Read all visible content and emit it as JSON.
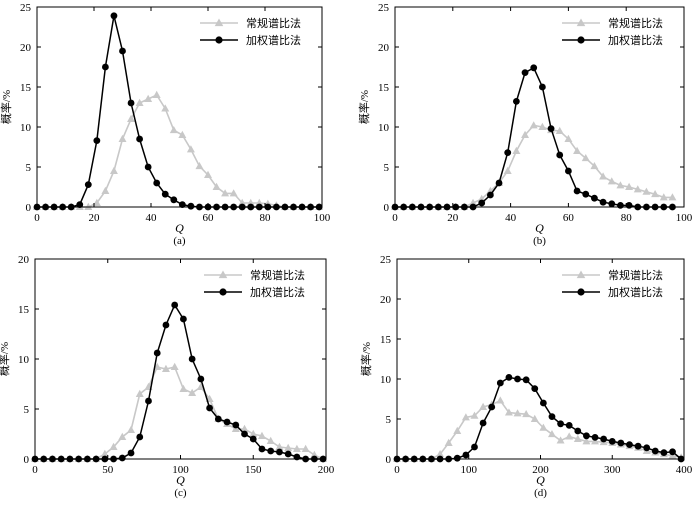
{
  "chart_data": [
    {
      "type": "line",
      "caption": "(a)",
      "xlabel": "Q",
      "ylabel": "概率/%",
      "xlim": [
        0,
        100
      ],
      "ylim": [
        0,
        25
      ],
      "xticks": [
        0,
        20,
        40,
        60,
        80,
        100
      ],
      "yticks": [
        0,
        5,
        10,
        15,
        20,
        25
      ],
      "legend_position": "top-right",
      "series": [
        {
          "name": "常规谱比法",
          "color": "#c8c8c8",
          "marker": "triangle",
          "x": [
            0,
            3,
            6,
            9,
            12,
            15,
            18,
            21,
            24,
            27,
            30,
            33,
            36,
            39,
            42,
            45,
            48,
            51,
            54,
            57,
            60,
            63,
            66,
            69,
            72,
            75,
            78,
            81,
            84,
            87,
            90,
            93,
            96,
            99
          ],
          "y": [
            0,
            0,
            0,
            0,
            0,
            0,
            0,
            0.5,
            2,
            4.5,
            8.5,
            11,
            13,
            13.5,
            14,
            12.3,
            9.6,
            9,
            7.2,
            5.1,
            4,
            2.5,
            1.7,
            1.7,
            0.5,
            0.5,
            0.5,
            0.4,
            0.2,
            0,
            0,
            0,
            0,
            0
          ]
        },
        {
          "name": "加权谱比法",
          "color": "#000000",
          "marker": "circle",
          "x": [
            0,
            3,
            6,
            9,
            12,
            15,
            18,
            21,
            24,
            27,
            30,
            33,
            36,
            39,
            42,
            45,
            48,
            51,
            54,
            57,
            60,
            63,
            66,
            69,
            72,
            75,
            78,
            81,
            84,
            87,
            90,
            93,
            96,
            99
          ],
          "y": [
            0,
            0,
            0,
            0,
            0,
            0.3,
            2.8,
            8.3,
            17.5,
            23.9,
            19.5,
            13,
            8.5,
            5,
            3,
            1.6,
            0.9,
            0.3,
            0.1,
            0,
            0,
            0,
            0,
            0,
            0,
            0,
            0,
            0,
            0,
            0,
            0,
            0,
            0,
            0
          ]
        }
      ]
    },
    {
      "type": "line",
      "caption": "(b)",
      "xlabel": "Q",
      "ylabel": "概率/%",
      "xlim": [
        0,
        100
      ],
      "ylim": [
        0,
        25
      ],
      "xticks": [
        0,
        20,
        40,
        60,
        80,
        100
      ],
      "yticks": [
        0,
        5,
        10,
        15,
        20,
        25
      ],
      "legend_position": "top-right",
      "series": [
        {
          "name": "常规谱比法",
          "color": "#c8c8c8",
          "marker": "triangle",
          "x": [
            0,
            3,
            6,
            9,
            12,
            15,
            18,
            21,
            24,
            27,
            30,
            33,
            36,
            39,
            42,
            45,
            48,
            51,
            54,
            57,
            60,
            63,
            66,
            69,
            72,
            75,
            78,
            81,
            84,
            87,
            90,
            93,
            96
          ],
          "y": [
            0,
            0,
            0,
            0,
            0,
            0,
            0,
            0,
            0,
            0.5,
            1,
            2,
            3,
            4.5,
            7,
            9,
            10.2,
            10,
            9.6,
            9.5,
            8.5,
            7,
            6.1,
            5.1,
            3.8,
            3.2,
            2.7,
            2.5,
            2.2,
            1.9,
            1.6,
            1.2,
            1.2
          ]
        },
        {
          "name": "加权谱比法",
          "color": "#000000",
          "marker": "circle",
          "x": [
            0,
            3,
            6,
            9,
            12,
            15,
            18,
            21,
            24,
            27,
            30,
            33,
            36,
            39,
            42,
            45,
            48,
            51,
            54,
            57,
            60,
            63,
            66,
            69,
            72,
            75,
            78,
            81,
            84,
            87,
            90,
            93,
            96
          ],
          "y": [
            0,
            0,
            0,
            0,
            0,
            0,
            0,
            0,
            0,
            0,
            0.5,
            1.5,
            3,
            6.8,
            13.2,
            16.8,
            17.4,
            15,
            9.8,
            6.5,
            4.5,
            2,
            1.6,
            1.1,
            0.6,
            0.4,
            0.2,
            0.2,
            0,
            0,
            0,
            0,
            0
          ]
        }
      ]
    },
    {
      "type": "line",
      "caption": "(c)",
      "xlabel": "Q",
      "ylabel": "概率/%",
      "xlim": [
        0,
        200
      ],
      "ylim": [
        0,
        20
      ],
      "xticks": [
        0,
        50,
        100,
        150,
        200
      ],
      "yticks": [
        0,
        5,
        10,
        15,
        20
      ],
      "legend_position": "top-right",
      "series": [
        {
          "name": "常规谱比法",
          "color": "#c8c8c8",
          "marker": "triangle",
          "x": [
            0,
            6,
            12,
            18,
            24,
            30,
            36,
            42,
            48,
            54,
            60,
            66,
            72,
            78,
            84,
            90,
            96,
            102,
            108,
            114,
            120,
            126,
            132,
            138,
            144,
            150,
            156,
            162,
            168,
            174,
            180,
            186,
            192,
            198
          ],
          "y": [
            0,
            0,
            0,
            0,
            0,
            0,
            0,
            0,
            0.5,
            1.2,
            2.2,
            2.9,
            6.5,
            7.2,
            9.2,
            9,
            9.2,
            7,
            6.6,
            7.2,
            6,
            4,
            3.5,
            3,
            3,
            2.5,
            2.3,
            1.8,
            1.2,
            1.1,
            1,
            1,
            0.4,
            0
          ]
        },
        {
          "name": "加权谱比法",
          "color": "#000000",
          "marker": "circle",
          "x": [
            0,
            6,
            12,
            18,
            24,
            30,
            36,
            42,
            48,
            54,
            60,
            66,
            72,
            78,
            84,
            90,
            96,
            102,
            108,
            114,
            120,
            126,
            132,
            138,
            144,
            150,
            156,
            162,
            168,
            174,
            180,
            186,
            192,
            198
          ],
          "y": [
            0,
            0,
            0,
            0,
            0,
            0,
            0,
            0,
            0,
            0,
            0.1,
            0.6,
            2.2,
            5.8,
            10.6,
            13.4,
            15.4,
            14,
            10,
            8,
            5.1,
            4,
            3.7,
            3.4,
            2.5,
            2,
            1,
            0.8,
            0.7,
            0.5,
            0.2,
            0,
            0,
            0
          ]
        }
      ]
    },
    {
      "type": "line",
      "caption": "(d)",
      "xlabel": "Q",
      "ylabel": "概率/%",
      "xlim": [
        0,
        400
      ],
      "ylim": [
        0,
        25
      ],
      "xticks": [
        0,
        100,
        200,
        300,
        400
      ],
      "yticks": [
        0,
        5,
        10,
        15,
        20,
        25
      ],
      "legend_position": "top-right",
      "series": [
        {
          "name": "常规谱比法",
          "color": "#c8c8c8",
          "marker": "triangle",
          "x": [
            0,
            12,
            24,
            36,
            48,
            60,
            72,
            84,
            96,
            108,
            120,
            132,
            144,
            156,
            168,
            180,
            192,
            204,
            216,
            228,
            240,
            252,
            264,
            276,
            288,
            300,
            312,
            324,
            336,
            348,
            360,
            372,
            384,
            396
          ],
          "y": [
            0,
            0,
            0,
            0,
            0,
            0.6,
            2,
            3.5,
            5.2,
            5.4,
            6.5,
            6.8,
            7.3,
            5.8,
            5.7,
            5.6,
            5,
            3.9,
            3.1,
            2.3,
            2.8,
            2.5,
            2.2,
            2.2,
            2.1,
            2,
            1.8,
            1.6,
            1.4,
            1,
            0.8,
            0.6,
            0.4,
            0.2
          ]
        },
        {
          "name": "加权谱比法",
          "color": "#000000",
          "marker": "circle",
          "x": [
            0,
            12,
            24,
            36,
            48,
            60,
            72,
            84,
            96,
            108,
            120,
            132,
            144,
            156,
            168,
            180,
            192,
            204,
            216,
            228,
            240,
            252,
            264,
            276,
            288,
            300,
            312,
            324,
            336,
            348,
            360,
            372,
            384,
            396
          ],
          "y": [
            0,
            0,
            0,
            0,
            0,
            0,
            0,
            0.1,
            0.5,
            1.5,
            4.5,
            6.5,
            9.5,
            10.2,
            10,
            9.9,
            8.8,
            7,
            5.3,
            4.4,
            4.2,
            3.5,
            2.9,
            2.7,
            2.5,
            2.2,
            2,
            1.8,
            1.6,
            1.4,
            1,
            0.8,
            0.9,
            0
          ]
        }
      ]
    }
  ]
}
